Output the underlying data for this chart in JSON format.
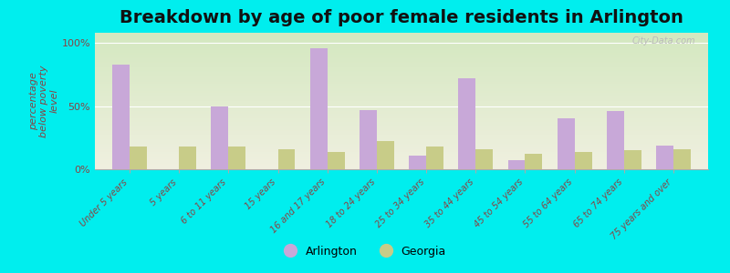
{
  "title": "Breakdown by age of poor female residents in Arlington",
  "ylabel": "percentage\nbelow poverty\nlevel",
  "categories": [
    "Under 5 years",
    "5 years",
    "6 to 11 years",
    "15 years",
    "16 and 17 years",
    "18 to 24 years",
    "25 to 34 years",
    "35 to 44 years",
    "45 to 54 years",
    "55 to 64 years",
    "65 to 74 years",
    "75 years and over"
  ],
  "arlington": [
    83,
    0,
    50,
    0,
    96,
    47,
    11,
    72,
    7,
    40,
    46,
    19
  ],
  "georgia": [
    18,
    18,
    18,
    16,
    14,
    22,
    18,
    16,
    12,
    14,
    15,
    16
  ],
  "arlington_color": "#c8a8d8",
  "georgia_color": "#c8cc88",
  "bg_top_color": "#d4e8c0",
  "bg_bottom_color": "#f0f0e0",
  "bg_outer": "#00eeee",
  "ytick_vals": [
    0,
    50,
    100
  ],
  "ytick_labels": [
    "0%",
    "50%",
    "100%"
  ],
  "bar_width": 0.35,
  "title_fontsize": 14,
  "axis_label_color": "#884444",
  "watermark": "City-Data.com"
}
